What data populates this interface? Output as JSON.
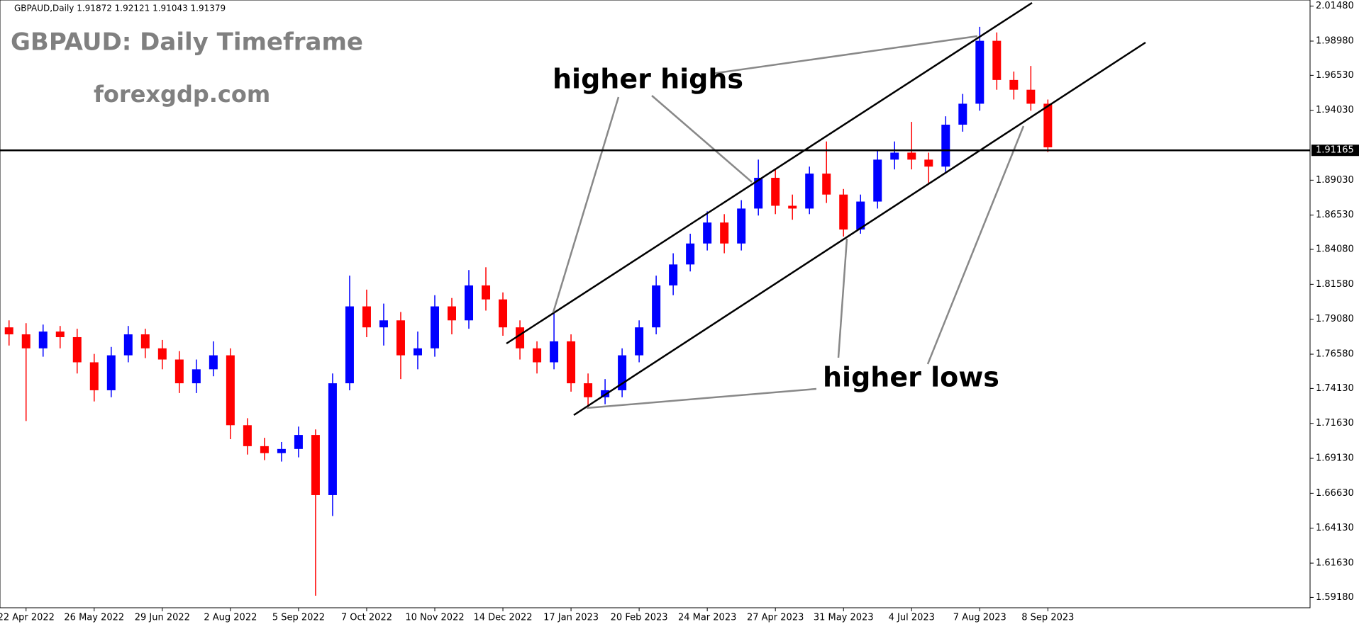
{
  "chart_data": {
    "type": "candlestick",
    "header": "GBPAUD,Daily  1.91872 1.92121 1.91043 1.91379",
    "title": "GBPAUD: Daily Timeframe",
    "subtitle": "forexgdp.com",
    "annotations": [
      "higher highs",
      "higher lows"
    ],
    "categories": [
      null,
      "22 Apr 2022",
      null,
      null,
      null,
      "26 May 2022",
      null,
      null,
      null,
      "29 Jun 2022",
      null,
      null,
      null,
      "2 Aug 2022",
      null,
      null,
      null,
      "5 Sep 2022",
      null,
      null,
      null,
      "7 Oct 2022",
      null,
      null,
      null,
      "10 Nov 2022",
      null,
      null,
      null,
      "14 Dec 2022",
      null,
      null,
      null,
      "17 Jan 2023",
      null,
      null,
      null,
      "20 Feb 2023",
      null,
      null,
      null,
      "24 Mar 2023",
      null,
      null,
      null,
      "27 Apr 2023",
      null,
      null,
      null,
      "31 May 2023",
      null,
      null,
      null,
      "4 Jul 2023",
      null,
      null,
      null,
      "7 Aug 2023",
      null,
      null,
      null,
      "8 Sep 2023"
    ],
    "open": [
      1.785,
      1.78,
      1.77,
      1.782,
      1.778,
      1.76,
      1.74,
      1.765,
      1.78,
      1.77,
      1.762,
      1.745,
      1.755,
      1.765,
      1.715,
      1.7,
      1.695,
      1.698,
      1.708,
      1.665,
      1.745,
      1.8,
      1.785,
      1.79,
      1.765,
      1.77,
      1.8,
      1.79,
      1.815,
      1.805,
      1.785,
      1.77,
      1.76,
      1.775,
      1.745,
      1.735,
      1.74,
      1.765,
      1.785,
      1.815,
      1.83,
      1.845,
      1.86,
      1.845,
      1.87,
      1.892,
      1.872,
      1.87,
      1.895,
      1.88,
      1.855,
      1.875,
      1.905,
      1.91,
      1.905,
      1.9,
      1.93,
      1.945,
      1.99,
      1.962,
      1.955,
      1.945
    ],
    "high": [
      1.79,
      1.788,
      1.787,
      1.786,
      1.784,
      1.766,
      1.771,
      1.786,
      1.784,
      1.776,
      1.768,
      1.762,
      1.775,
      1.77,
      1.72,
      1.706,
      1.703,
      1.714,
      1.712,
      1.752,
      1.822,
      1.812,
      1.802,
      1.796,
      1.782,
      1.808,
      1.806,
      1.826,
      1.828,
      1.81,
      1.79,
      1.775,
      1.795,
      1.78,
      1.752,
      1.748,
      1.77,
      1.79,
      1.822,
      1.838,
      1.852,
      1.868,
      1.866,
      1.876,
      1.905,
      1.898,
      1.88,
      1.9,
      1.918,
      1.884,
      1.88,
      1.912,
      1.918,
      1.932,
      1.91,
      1.936,
      1.952,
      2.0,
      1.996,
      1.968,
      1.972,
      1.948
    ],
    "low": [
      1.772,
      1.718,
      1.764,
      1.77,
      1.752,
      1.732,
      1.735,
      1.76,
      1.763,
      1.755,
      1.738,
      1.738,
      1.75,
      1.705,
      1.694,
      1.69,
      1.689,
      1.692,
      1.593,
      1.65,
      1.74,
      1.778,
      1.772,
      1.748,
      1.755,
      1.764,
      1.78,
      1.784,
      1.797,
      1.779,
      1.762,
      1.752,
      1.755,
      1.739,
      1.727,
      1.73,
      1.735,
      1.76,
      1.78,
      1.808,
      1.825,
      1.84,
      1.838,
      1.84,
      1.865,
      1.866,
      1.862,
      1.866,
      1.874,
      1.85,
      1.852,
      1.87,
      1.898,
      1.898,
      1.888,
      1.895,
      1.925,
      1.94,
      1.955,
      1.948,
      1.94,
      1.9104
    ],
    "close": [
      1.78,
      1.77,
      1.782,
      1.778,
      1.76,
      1.74,
      1.765,
      1.78,
      1.77,
      1.762,
      1.745,
      1.755,
      1.765,
      1.715,
      1.7,
      1.695,
      1.698,
      1.708,
      1.665,
      1.745,
      1.8,
      1.785,
      1.79,
      1.765,
      1.77,
      1.8,
      1.79,
      1.815,
      1.805,
      1.785,
      1.77,
      1.76,
      1.775,
      1.745,
      1.735,
      1.74,
      1.765,
      1.785,
      1.815,
      1.83,
      1.845,
      1.86,
      1.845,
      1.87,
      1.892,
      1.872,
      1.87,
      1.895,
      1.88,
      1.855,
      1.875,
      1.905,
      1.91,
      1.905,
      1.9,
      1.93,
      1.945,
      1.99,
      1.962,
      1.955,
      1.945,
      1.9138
    ],
    "up_color": "#0000ff",
    "down_color": "#ff0000",
    "ylim": [
      1.5844,
      2.0192
    ],
    "yticks": [
      {
        "value": 2.0148,
        "label": "2.01480"
      },
      {
        "value": 1.9898,
        "label": "1.98980"
      },
      {
        "value": 1.9653,
        "label": "1.96530"
      },
      {
        "value": 1.9403,
        "label": "1.94030"
      },
      {
        "value": 1.8903,
        "label": "1.89030"
      },
      {
        "value": 1.8653,
        "label": "1.86530"
      },
      {
        "value": 1.8408,
        "label": "1.84080"
      },
      {
        "value": 1.8158,
        "label": "1.81580"
      },
      {
        "value": 1.7908,
        "label": "1.79080"
      },
      {
        "value": 1.7658,
        "label": "1.76580"
      },
      {
        "value": 1.7413,
        "label": "1.74130"
      },
      {
        "value": 1.7163,
        "label": "1.71630"
      },
      {
        "value": 1.6913,
        "label": "1.69130"
      },
      {
        "value": 1.6663,
        "label": "1.66630"
      },
      {
        "value": 1.6413,
        "label": "1.64130"
      },
      {
        "value": 1.6163,
        "label": "1.61630"
      },
      {
        "value": 1.5918,
        "label": "1.59180"
      }
    ],
    "price_line": {
      "value": 1.91165,
      "label": "1.91165"
    }
  }
}
